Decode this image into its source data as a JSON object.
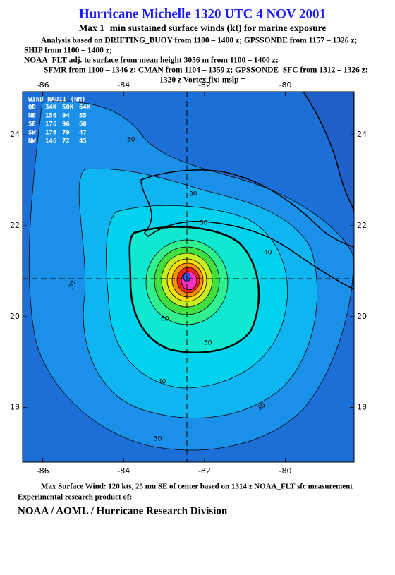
{
  "header": {
    "title": "Hurricane Michelle 1320 UTC 4 NOV 2001",
    "subtitle": "Max 1−min sustained surface winds (kt) for marine exposure",
    "lines": [
      "Analysis based on  DRIFTING_BUOY from 1100 – 1400 z;  GPSSONDE from 1157 – 1326 z;",
      "SHIP from 1100 – 1400 z;",
      "NOAA_FLT adj. to surface from mean height 3056 m from 1100 – 1400 z;",
      "SFMR from 1100 – 1346 z;  CMAN from 1104 – 1359 z;  GPSSONDE_SFC from 1312 – 1326 z;",
      "1320 z Vortex fix; mslp ="
    ]
  },
  "map": {
    "xlim": [
      -86.5,
      -78.3
    ],
    "ylim": [
      16.8,
      24.95
    ],
    "lon_ticks": [
      -86,
      -84,
      -82,
      -80
    ],
    "lat_ticks": [
      24,
      22,
      20,
      18
    ],
    "wind_radii": {
      "title": "WIND RADII (NM)",
      "header": [
        "QD",
        "34K",
        "50K",
        "64K"
      ],
      "rows": [
        [
          "NE",
          156,
          94,
          55
        ],
        [
          "SE",
          176,
          96,
          60
        ],
        [
          "SW",
          176,
          79,
          47
        ],
        [
          "NW",
          146,
          72,
          45
        ]
      ]
    },
    "contour_labels": [
      30,
      30,
      50,
      40,
      30,
      60,
      50,
      40,
      30,
      30
    ]
  },
  "footer": {
    "max_wind": "Max Surface Wind: 120 kts, 25 nm SE of center based on 1314 z NOAA_FLT sfc measurement",
    "product": "Experimental research product of:",
    "org": "NOAA / AOML / Hurricane Research Division"
  }
}
